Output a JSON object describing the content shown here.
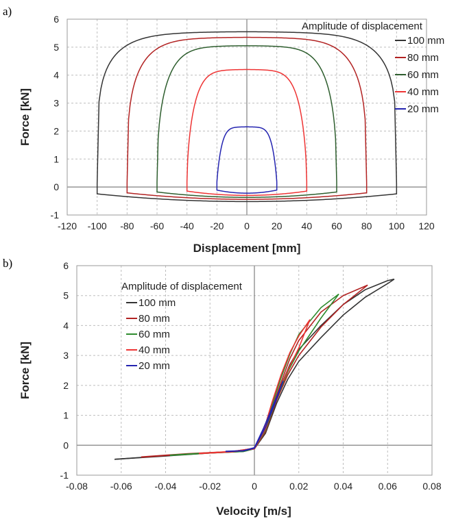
{
  "chart_data": [
    {
      "panel_label": "a)",
      "type": "line",
      "xlabel": "Displacement [mm]",
      "ylabel": "Force [kN]",
      "xlim": [
        -120,
        120
      ],
      "ylim": [
        -1,
        6
      ],
      "xticks": [
        -120,
        -100,
        -80,
        -60,
        -40,
        -20,
        0,
        20,
        40,
        60,
        80,
        100,
        120
      ],
      "yticks": [
        -1,
        0,
        1,
        2,
        3,
        4,
        5,
        6
      ],
      "grid": true,
      "legend": {
        "title": "Amplitude of displacement",
        "position": "top-right"
      },
      "series": [
        {
          "name": "100 mm",
          "color": "#333333",
          "amplitude": 100,
          "peak": 5.55,
          "low": -0.5,
          "flat": 0.12,
          "shape": 0.22
        },
        {
          "name": "80 mm",
          "color": "#b22222",
          "amplitude": 80,
          "peak": 5.35,
          "low": -0.42,
          "flat": 0.15,
          "shape": 0.3
        },
        {
          "name": "60 mm",
          "color": "#2e5e2e",
          "amplitude": 60,
          "peak": 5.05,
          "low": -0.35,
          "flat": 0.18,
          "shape": 0.42
        },
        {
          "name": "40 mm",
          "color": "#ee3333",
          "amplitude": 40,
          "peak": 4.2,
          "low": -0.28,
          "flat": 0.2,
          "shape": 0.6
        },
        {
          "name": "20 mm",
          "color": "#2323b0",
          "amplitude": 20,
          "peak": 2.15,
          "low": -0.2,
          "flat": 0.18,
          "shape": 0.9
        }
      ]
    },
    {
      "panel_label": "b)",
      "type": "line",
      "xlabel": "Velocity [m/s]",
      "ylabel": "Force [kN]",
      "xlim": [
        -0.08,
        0.08
      ],
      "ylim": [
        -1,
        6
      ],
      "xticks": [
        -0.08,
        -0.06,
        -0.04,
        -0.02,
        0,
        0.02,
        0.04,
        0.06,
        0.08
      ],
      "yticks": [
        -1,
        0,
        1,
        2,
        3,
        4,
        5,
        6
      ],
      "grid": true,
      "legend": {
        "title": "Amplitude of displacement",
        "position": "top-left"
      },
      "series": [
        {
          "name": "100 mm",
          "color": "#333333",
          "branches": [
            [
              [
                -0.063,
                -0.47
              ],
              [
                -0.04,
                -0.35
              ],
              [
                -0.02,
                -0.25
              ],
              [
                -0.005,
                -0.2
              ],
              [
                0.0,
                -0.1
              ],
              [
                0.004,
                0.3
              ],
              [
                0.008,
                1.2
              ],
              [
                0.012,
                2.0
              ],
              [
                0.016,
                2.7
              ],
              [
                0.02,
                3.2
              ],
              [
                0.03,
                4.0
              ],
              [
                0.04,
                4.7
              ],
              [
                0.05,
                5.2
              ],
              [
                0.06,
                5.5
              ],
              [
                0.063,
                5.55
              ]
            ],
            [
              [
                -0.063,
                -0.47
              ],
              [
                -0.04,
                -0.36
              ],
              [
                -0.02,
                -0.26
              ],
              [
                -0.005,
                -0.21
              ],
              [
                0.0,
                -0.12
              ],
              [
                0.005,
                0.4
              ],
              [
                0.01,
                1.4
              ],
              [
                0.015,
                2.2
              ],
              [
                0.02,
                2.8
              ],
              [
                0.03,
                3.6
              ],
              [
                0.04,
                4.35
              ],
              [
                0.05,
                4.95
              ],
              [
                0.06,
                5.4
              ],
              [
                0.063,
                5.55
              ]
            ]
          ]
        },
        {
          "name": "80 mm",
          "color": "#b22222",
          "branches": [
            [
              [
                -0.051,
                -0.39
              ],
              [
                -0.03,
                -0.28
              ],
              [
                -0.01,
                -0.21
              ],
              [
                0.0,
                -0.1
              ],
              [
                0.004,
                0.35
              ],
              [
                0.008,
                1.25
              ],
              [
                0.012,
                2.1
              ],
              [
                0.016,
                2.9
              ],
              [
                0.02,
                3.5
              ],
              [
                0.03,
                4.45
              ],
              [
                0.04,
                5.0
              ],
              [
                0.051,
                5.35
              ]
            ],
            [
              [
                -0.051,
                -0.4
              ],
              [
                -0.03,
                -0.29
              ],
              [
                -0.01,
                -0.22
              ],
              [
                0.0,
                -0.12
              ],
              [
                0.005,
                0.45
              ],
              [
                0.01,
                1.5
              ],
              [
                0.015,
                2.35
              ],
              [
                0.02,
                3.0
              ],
              [
                0.03,
                3.95
              ],
              [
                0.04,
                4.7
              ],
              [
                0.051,
                5.35
              ]
            ]
          ]
        },
        {
          "name": "60 mm",
          "color": "#2e8b2e",
          "branches": [
            [
              [
                -0.038,
                -0.33
              ],
              [
                -0.02,
                -0.25
              ],
              [
                -0.005,
                -0.2
              ],
              [
                0.0,
                -0.1
              ],
              [
                0.004,
                0.4
              ],
              [
                0.008,
                1.35
              ],
              [
                0.012,
                2.25
              ],
              [
                0.016,
                3.05
              ],
              [
                0.02,
                3.7
              ],
              [
                0.03,
                4.6
              ],
              [
                0.038,
                5.05
              ]
            ],
            [
              [
                -0.038,
                -0.34
              ],
              [
                -0.02,
                -0.26
              ],
              [
                -0.005,
                -0.21
              ],
              [
                0.0,
                -0.12
              ],
              [
                0.005,
                0.5
              ],
              [
                0.01,
                1.55
              ],
              [
                0.015,
                2.45
              ],
              [
                0.02,
                3.15
              ],
              [
                0.03,
                4.25
              ],
              [
                0.038,
                5.05
              ]
            ]
          ]
        },
        {
          "name": "40 mm",
          "color": "#ee3333",
          "branches": [
            [
              [
                -0.025,
                -0.27
              ],
              [
                -0.01,
                -0.21
              ],
              [
                0.0,
                -0.1
              ],
              [
                0.004,
                0.45
              ],
              [
                0.008,
                1.45
              ],
              [
                0.012,
                2.35
              ],
              [
                0.016,
                3.1
              ],
              [
                0.02,
                3.65
              ],
              [
                0.025,
                4.2
              ]
            ],
            [
              [
                -0.025,
                -0.28
              ],
              [
                -0.01,
                -0.22
              ],
              [
                0.0,
                -0.12
              ],
              [
                0.005,
                0.55
              ],
              [
                0.01,
                1.6
              ],
              [
                0.015,
                2.5
              ],
              [
                0.02,
                3.25
              ],
              [
                0.025,
                4.2
              ]
            ]
          ]
        },
        {
          "name": "20 mm",
          "color": "#2323b0",
          "branches": [
            [
              [
                -0.013,
                -0.2
              ],
              [
                -0.005,
                -0.18
              ],
              [
                0.0,
                -0.08
              ],
              [
                0.004,
                0.55
              ],
              [
                0.008,
                1.25
              ],
              [
                0.013,
                2.15
              ]
            ],
            [
              [
                -0.013,
                -0.21
              ],
              [
                -0.005,
                -0.19
              ],
              [
                0.0,
                -0.1
              ],
              [
                0.005,
                0.6
              ],
              [
                0.009,
                1.35
              ],
              [
                0.013,
                2.15
              ]
            ]
          ]
        }
      ]
    }
  ]
}
